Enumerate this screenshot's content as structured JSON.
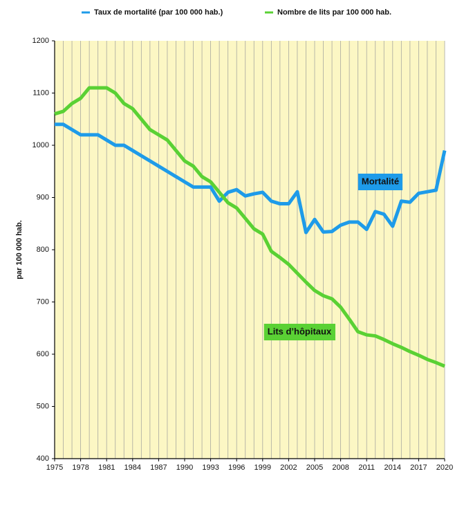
{
  "chart_data": {
    "type": "line",
    "y_label": "par 100 000 hab.",
    "x": [
      1975,
      1976,
      1977,
      1978,
      1979,
      1980,
      1981,
      1982,
      1983,
      1984,
      1985,
      1986,
      1987,
      1988,
      1989,
      1990,
      1991,
      1992,
      1993,
      1994,
      1995,
      1996,
      1997,
      1998,
      1999,
      2000,
      2001,
      2002,
      2003,
      2004,
      2005,
      2006,
      2007,
      2008,
      2009,
      2010,
      2011,
      2012,
      2013,
      2014,
      2015,
      2016,
      2017,
      2018,
      2019,
      2020
    ],
    "series": [
      {
        "name": "Taux de mortalité (par 100 000 hab.)",
        "color": "#1e9be9",
        "values": [
          1040,
          1040,
          1030,
          1020,
          1020,
          1020,
          1010,
          1000,
          1000,
          990,
          980,
          970,
          960,
          950,
          940,
          930,
          920,
          920,
          920,
          893,
          910,
          915,
          903,
          907,
          910,
          893,
          888,
          888,
          911,
          833,
          858,
          834,
          835,
          847,
          853,
          853,
          839,
          873,
          868,
          845,
          893,
          891,
          908,
          911,
          914,
          990
        ]
      },
      {
        "name": "Nombre de lits par 100 000 hab.",
        "color": "#5ad134",
        "values": [
          1060,
          1065,
          1080,
          1090,
          1110,
          1110,
          1110,
          1100,
          1080,
          1070,
          1050,
          1030,
          1020,
          1010,
          990,
          970,
          960,
          940,
          930,
          910,
          890,
          880,
          860,
          840,
          830,
          797,
          785,
          772,
          755,
          738,
          722,
          712,
          706,
          690,
          667,
          643,
          637,
          635,
          628,
          620,
          613,
          605,
          598,
          590,
          584,
          577
        ]
      }
    ],
    "annotations": [
      {
        "text": "Mortalité",
        "color": "#1e9be9"
      },
      {
        "text": "Lits d’hôpitaux",
        "color": "#5ad134"
      }
    ],
    "xlim": [
      1975,
      2020
    ],
    "xticks": [
      1975,
      1978,
      1981,
      1984,
      1987,
      1990,
      1993,
      1996,
      1999,
      2002,
      2005,
      2008,
      2011,
      2014,
      2017,
      2020
    ],
    "ylim": [
      400,
      1200
    ],
    "yticks": [
      400,
      500,
      600,
      700,
      800,
      900,
      1000,
      1100,
      1200
    ],
    "background": "#fcf7c4"
  }
}
